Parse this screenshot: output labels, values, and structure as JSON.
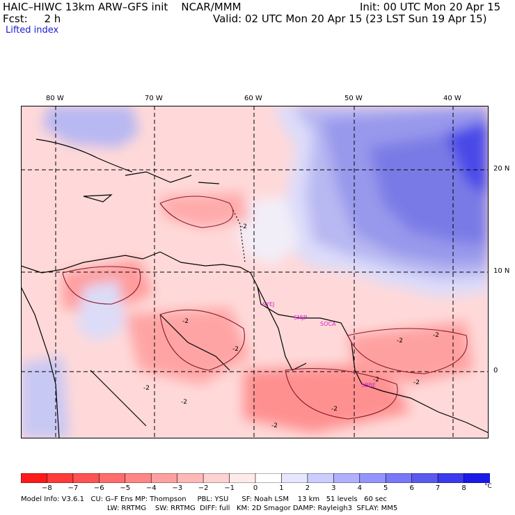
{
  "header": {
    "title": "HAIC–HIWC 13km ARW–GFS init    NCAR/MMM",
    "fcst": "Fcst:     2 h",
    "init": "Init: 00 UTC Mon 20 Apr 15",
    "valid": "Valid: 02 UTC Mon 20 Apr 15 (23 LST Sun 19 Apr 15)"
  },
  "field": "Lifted index",
  "map": {
    "lon_labels": [
      "80 W",
      "70 W",
      "60 W",
      "50 W",
      "40 W"
    ],
    "lat_labels": [
      "20 N",
      "10 N",
      "0"
    ],
    "contour_labels": [
      "-2",
      "-2",
      "-2",
      "-2",
      "-2",
      "-2",
      "-2",
      "-2",
      "-2",
      "-2",
      "-2"
    ],
    "stations": [
      "SYEJ",
      "SMJP",
      "SOCA",
      "SBBE"
    ]
  },
  "colorbar": {
    "labels": [
      "−8",
      "−7",
      "−6",
      "−5",
      "−4",
      "−3",
      "−2",
      "−1",
      "0",
      "1",
      "2",
      "3",
      "4",
      "5",
      "6",
      "7",
      "8"
    ],
    "unit": "°C",
    "colors": [
      "#ff1a1a",
      "#ff3a3a",
      "#ff5252",
      "#ff6c6c",
      "#ff8686",
      "#ffa0a0",
      "#ffb8b8",
      "#ffd2d2",
      "#ffeaea",
      "#ffffff",
      "#e6e6ff",
      "#ccccff",
      "#b0b0ff",
      "#9494ff",
      "#7878f8",
      "#5a5af0",
      "#3a3aee",
      "#1a1ae8"
    ]
  },
  "footer": {
    "line1": "Model Info: V3.6.1   CU: G–F Ens MP: Thompson     PBL: YSU      SF: Noah LSM    13 km   51 levels   60 sec",
    "line2": "LW: RRTMG    SW: RRTMG  DIFF: full   KM: 2D Smagor DAMP: Rayleigh3  SFLAY: MM5"
  }
}
